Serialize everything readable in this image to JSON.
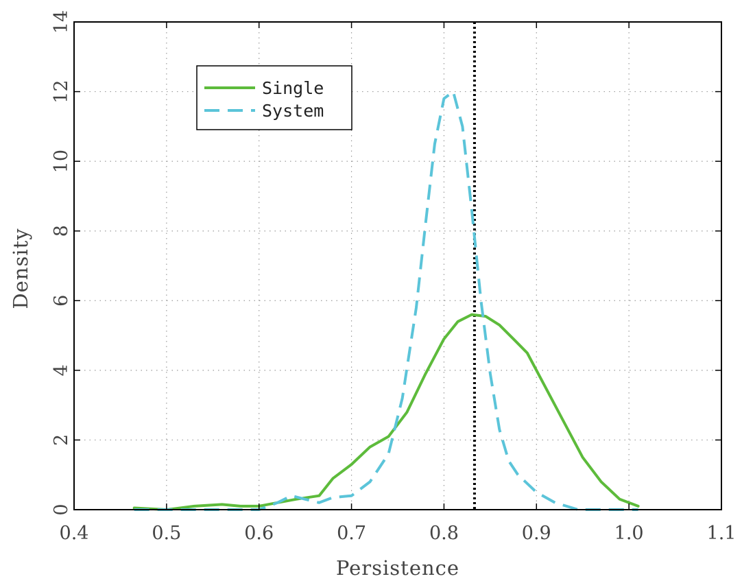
{
  "chart_data": {
    "type": "line",
    "title": "",
    "xlabel": "Persistence",
    "ylabel": "Density",
    "xlim": [
      0.4,
      1.1
    ],
    "ylim": [
      0,
      14
    ],
    "x_ticks": [
      "0.4",
      "0.5",
      "0.6",
      "0.7",
      "0.8",
      "0.9",
      "1.0",
      "1.1"
    ],
    "y_ticks": [
      "0",
      "2",
      "4",
      "6",
      "8",
      "10",
      "12",
      "14"
    ],
    "grid": true,
    "legend_position": "top-left",
    "reference_line": {
      "x": 0.833,
      "style": "dotted",
      "color": "#000000"
    },
    "series": [
      {
        "name": "Single",
        "style": "solid",
        "color": "#5dbb3b",
        "x": [
          0.465,
          0.5,
          0.53,
          0.56,
          0.58,
          0.6,
          0.62,
          0.64,
          0.665,
          0.68,
          0.7,
          0.72,
          0.74,
          0.76,
          0.78,
          0.8,
          0.815,
          0.83,
          0.845,
          0.86,
          0.875,
          0.89,
          0.91,
          0.93,
          0.95,
          0.97,
          0.99,
          1.01
        ],
        "y": [
          0.05,
          0.0,
          0.1,
          0.15,
          0.1,
          0.1,
          0.2,
          0.3,
          0.4,
          0.9,
          1.3,
          1.8,
          2.1,
          2.8,
          3.9,
          4.9,
          5.4,
          5.6,
          5.55,
          5.3,
          4.9,
          4.5,
          3.5,
          2.5,
          1.5,
          0.8,
          0.3,
          0.1
        ]
      },
      {
        "name": "System",
        "style": "dashed",
        "color": "#5bc4d9",
        "x": [
          0.465,
          0.6,
          0.62,
          0.635,
          0.65,
          0.665,
          0.68,
          0.7,
          0.72,
          0.74,
          0.755,
          0.77,
          0.78,
          0.79,
          0.8,
          0.81,
          0.82,
          0.83,
          0.84,
          0.85,
          0.86,
          0.87,
          0.88,
          0.9,
          0.92,
          0.945,
          1.01
        ],
        "y": [
          0.0,
          0.0,
          0.2,
          0.4,
          0.3,
          0.2,
          0.35,
          0.4,
          0.8,
          1.6,
          3.2,
          5.8,
          8.2,
          10.5,
          11.8,
          12.0,
          11.0,
          8.6,
          6.0,
          3.9,
          2.3,
          1.4,
          1.0,
          0.5,
          0.2,
          0.0,
          0.0
        ]
      }
    ]
  }
}
